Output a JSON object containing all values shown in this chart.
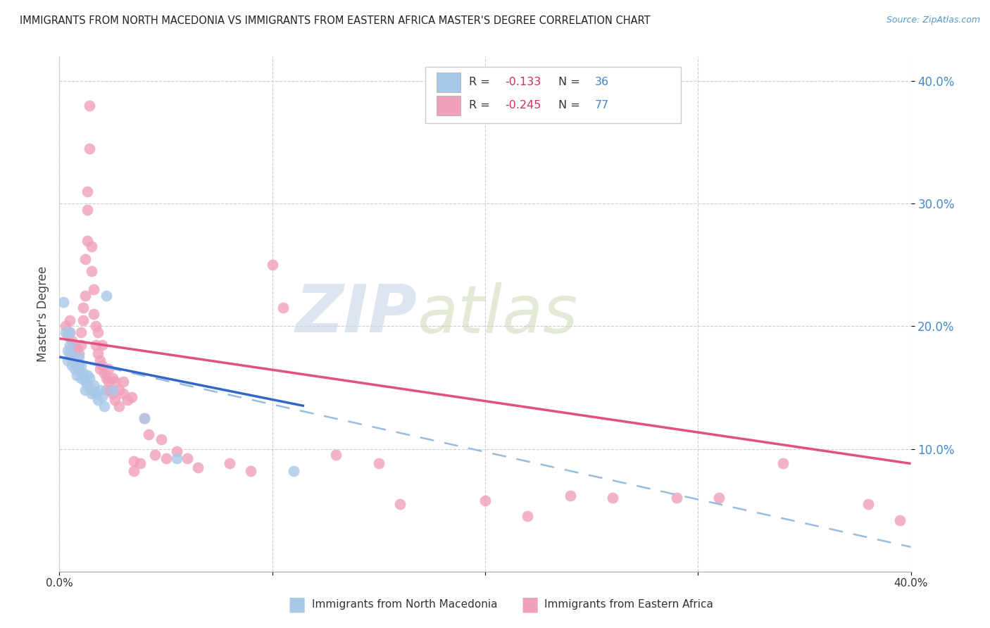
{
  "title": "IMMIGRANTS FROM NORTH MACEDONIA VS IMMIGRANTS FROM EASTERN AFRICA MASTER'S DEGREE CORRELATION CHART",
  "source": "Source: ZipAtlas.com",
  "ylabel": "Master's Degree",
  "xlim": [
    0.0,
    0.4
  ],
  "ylim": [
    0.0,
    0.42
  ],
  "ytick_vals": [
    0.1,
    0.2,
    0.3,
    0.4
  ],
  "ytick_labels": [
    "10.0%",
    "20.0%",
    "30.0%",
    "40.0%"
  ],
  "xtick_vals": [
    0.0,
    0.1,
    0.2,
    0.3,
    0.4
  ],
  "xtick_labels": [
    "0.0%",
    "",
    "",
    "",
    "40.0%"
  ],
  "watermark_zip": "ZIP",
  "watermark_atlas": "atlas",
  "legend_R1": "R = ",
  "legend_V1": "-0.133",
  "legend_N1_label": "N = ",
  "legend_N1_val": "36",
  "legend_R2": "R = ",
  "legend_V2": "-0.245",
  "legend_N2_label": "N = ",
  "legend_N2_val": "77",
  "color_blue": "#a8c8e8",
  "color_pink": "#f0a0b8",
  "line_blue": "#3366cc",
  "line_pink": "#e05080",
  "line_dash_color": "#99bbdd",
  "background": "#ffffff",
  "blue_line_x": [
    0.0,
    0.115
  ],
  "blue_line_y": [
    0.175,
    0.135
  ],
  "dash_line_x": [
    0.0,
    0.4
  ],
  "dash_line_y": [
    0.175,
    0.02
  ],
  "pink_line_x": [
    0.0,
    0.4
  ],
  "pink_line_y": [
    0.19,
    0.088
  ],
  "scatter_blue": [
    [
      0.002,
      0.22
    ],
    [
      0.003,
      0.195
    ],
    [
      0.004,
      0.18
    ],
    [
      0.004,
      0.172
    ],
    [
      0.005,
      0.195
    ],
    [
      0.005,
      0.185
    ],
    [
      0.005,
      0.178
    ],
    [
      0.006,
      0.175
    ],
    [
      0.006,
      0.168
    ],
    [
      0.007,
      0.172
    ],
    [
      0.007,
      0.165
    ],
    [
      0.008,
      0.17
    ],
    [
      0.008,
      0.16
    ],
    [
      0.009,
      0.175
    ],
    [
      0.009,
      0.165
    ],
    [
      0.01,
      0.168
    ],
    [
      0.01,
      0.158
    ],
    [
      0.011,
      0.162
    ],
    [
      0.012,
      0.155
    ],
    [
      0.012,
      0.148
    ],
    [
      0.013,
      0.16
    ],
    [
      0.013,
      0.152
    ],
    [
      0.014,
      0.158
    ],
    [
      0.015,
      0.148
    ],
    [
      0.015,
      0.145
    ],
    [
      0.016,
      0.152
    ],
    [
      0.017,
      0.145
    ],
    [
      0.018,
      0.14
    ],
    [
      0.019,
      0.148
    ],
    [
      0.02,
      0.143
    ],
    [
      0.021,
      0.135
    ],
    [
      0.022,
      0.225
    ],
    [
      0.025,
      0.148
    ],
    [
      0.04,
      0.125
    ],
    [
      0.055,
      0.092
    ],
    [
      0.11,
      0.082
    ]
  ],
  "scatter_pink": [
    [
      0.003,
      0.2
    ],
    [
      0.004,
      0.192
    ],
    [
      0.005,
      0.205
    ],
    [
      0.005,
      0.195
    ],
    [
      0.006,
      0.188
    ],
    [
      0.006,
      0.178
    ],
    [
      0.007,
      0.185
    ],
    [
      0.007,
      0.175
    ],
    [
      0.008,
      0.182
    ],
    [
      0.008,
      0.172
    ],
    [
      0.009,
      0.178
    ],
    [
      0.009,
      0.17
    ],
    [
      0.01,
      0.195
    ],
    [
      0.01,
      0.185
    ],
    [
      0.011,
      0.205
    ],
    [
      0.011,
      0.215
    ],
    [
      0.012,
      0.225
    ],
    [
      0.012,
      0.255
    ],
    [
      0.013,
      0.27
    ],
    [
      0.013,
      0.295
    ],
    [
      0.013,
      0.31
    ],
    [
      0.014,
      0.345
    ],
    [
      0.014,
      0.38
    ],
    [
      0.015,
      0.265
    ],
    [
      0.015,
      0.245
    ],
    [
      0.016,
      0.23
    ],
    [
      0.016,
      0.21
    ],
    [
      0.017,
      0.2
    ],
    [
      0.017,
      0.185
    ],
    [
      0.018,
      0.195
    ],
    [
      0.018,
      0.178
    ],
    [
      0.019,
      0.172
    ],
    [
      0.019,
      0.165
    ],
    [
      0.02,
      0.185
    ],
    [
      0.02,
      0.168
    ],
    [
      0.021,
      0.162
    ],
    [
      0.022,
      0.158
    ],
    [
      0.022,
      0.148
    ],
    [
      0.023,
      0.165
    ],
    [
      0.023,
      0.155
    ],
    [
      0.024,
      0.148
    ],
    [
      0.025,
      0.158
    ],
    [
      0.025,
      0.145
    ],
    [
      0.026,
      0.155
    ],
    [
      0.026,
      0.14
    ],
    [
      0.028,
      0.148
    ],
    [
      0.028,
      0.135
    ],
    [
      0.03,
      0.155
    ],
    [
      0.03,
      0.145
    ],
    [
      0.032,
      0.14
    ],
    [
      0.034,
      0.142
    ],
    [
      0.035,
      0.09
    ],
    [
      0.035,
      0.082
    ],
    [
      0.038,
      0.088
    ],
    [
      0.04,
      0.125
    ],
    [
      0.042,
      0.112
    ],
    [
      0.045,
      0.095
    ],
    [
      0.048,
      0.108
    ],
    [
      0.05,
      0.092
    ],
    [
      0.055,
      0.098
    ],
    [
      0.06,
      0.092
    ],
    [
      0.065,
      0.085
    ],
    [
      0.08,
      0.088
    ],
    [
      0.09,
      0.082
    ],
    [
      0.1,
      0.25
    ],
    [
      0.105,
      0.215
    ],
    [
      0.13,
      0.095
    ],
    [
      0.15,
      0.088
    ],
    [
      0.16,
      0.055
    ],
    [
      0.2,
      0.058
    ],
    [
      0.22,
      0.045
    ],
    [
      0.24,
      0.062
    ],
    [
      0.26,
      0.06
    ],
    [
      0.29,
      0.06
    ],
    [
      0.31,
      0.06
    ],
    [
      0.34,
      0.088
    ],
    [
      0.38,
      0.055
    ],
    [
      0.395,
      0.042
    ]
  ]
}
